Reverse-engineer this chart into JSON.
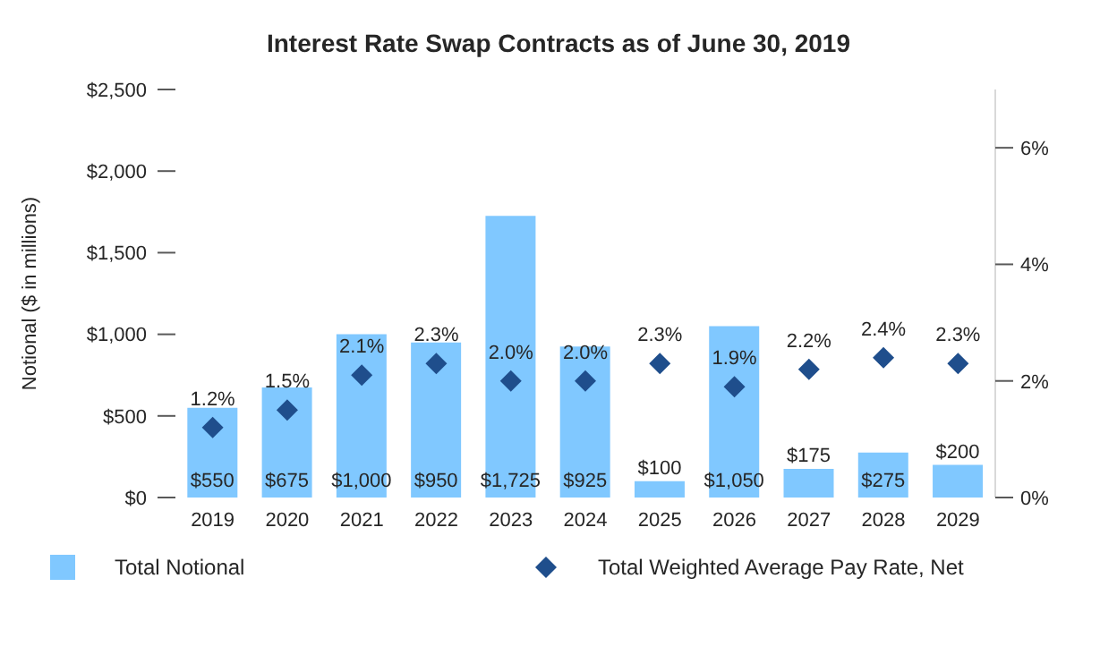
{
  "chart_data": {
    "type": "bar",
    "title": "Interest Rate Swap Contracts as of June 30, 2019",
    "ylabel": "Notional ($ in millions)",
    "categories": [
      "2019",
      "2020",
      "2021",
      "2022",
      "2023",
      "2024",
      "2025",
      "2026",
      "2027",
      "2028",
      "2029"
    ],
    "series": [
      {
        "name": "Total Notional",
        "color": "#80c8ff",
        "values": [
          550,
          675,
          1000,
          950,
          1725,
          925,
          100,
          1050,
          175,
          275,
          200
        ],
        "value_labels": [
          "$550",
          "$675",
          "$1,000",
          "$950",
          "$1,725",
          "$925",
          "$100",
          "$1,050",
          "$175",
          "$275",
          "$200"
        ]
      },
      {
        "name": "Total Weighted Average Pay Rate, Net",
        "type": "scatter",
        "axis": "y2",
        "marker": "diamond",
        "color": "#1f4e8c",
        "values": [
          1.2,
          1.5,
          2.1,
          2.3,
          2.0,
          2.0,
          2.3,
          1.9,
          2.2,
          2.4,
          2.3
        ],
        "value_labels": [
          "1.2%",
          "1.5%",
          "2.1%",
          "2.3%",
          "2.0%",
          "2.0%",
          "2.3%",
          "1.9%",
          "2.2%",
          "2.4%",
          "2.3%"
        ]
      }
    ],
    "ylim": [
      0,
      2500
    ],
    "yticks": [
      {
        "value": 0,
        "label": "$0"
      },
      {
        "value": 500,
        "label": "$500"
      },
      {
        "value": 1000,
        "label": "$1,000"
      },
      {
        "value": 1500,
        "label": "$1,500"
      },
      {
        "value": 2000,
        "label": "$2,000"
      },
      {
        "value": 2500,
        "label": "$2,500"
      }
    ],
    "y2lim": [
      0,
      7
    ],
    "y2ticks": [
      {
        "value": 0,
        "label": "0%"
      },
      {
        "value": 2,
        "label": "2%"
      },
      {
        "value": 4,
        "label": "4%"
      },
      {
        "value": 6,
        "label": "6%"
      }
    ],
    "grid": false,
    "legend": "bottom"
  }
}
